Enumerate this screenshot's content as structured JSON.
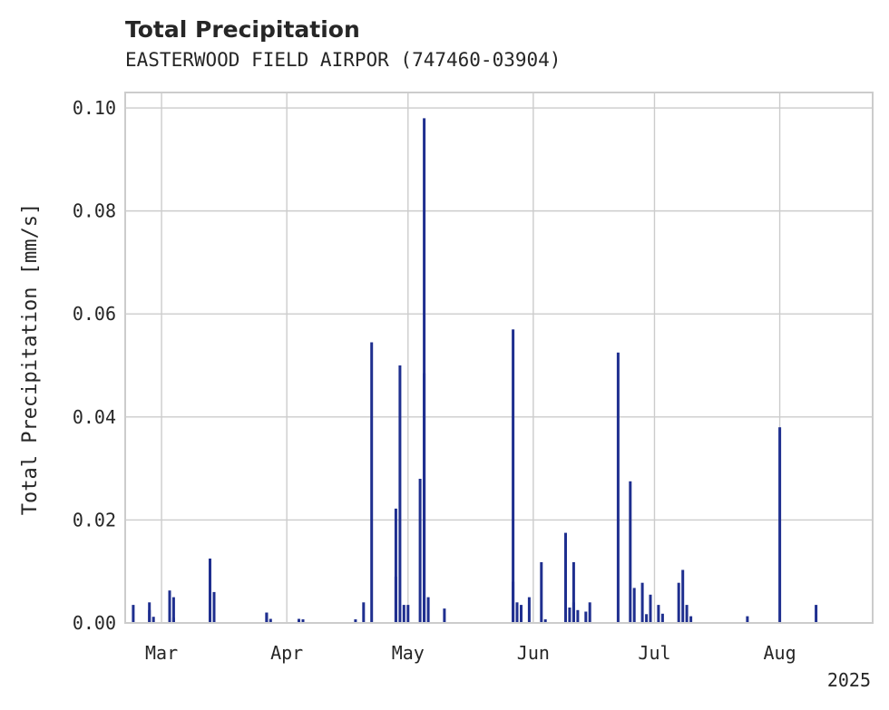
{
  "chart_data": {
    "type": "bar",
    "title": "Total Precipitation",
    "subtitle": "EASTERWOOD FIELD AIRPOR (747460-03904)",
    "ylabel": "Total Precipitation [mm/s]",
    "xlabel": "",
    "xlim": [
      "2025-02-20",
      "2025-08-24"
    ],
    "ylim": [
      0,
      0.103
    ],
    "yticks": [
      0.0,
      0.02,
      0.04,
      0.06,
      0.08,
      0.1
    ],
    "ytick_labels": [
      "0.00",
      "0.02",
      "0.04",
      "0.06",
      "0.08",
      "0.10"
    ],
    "xticks": [
      "2025-03-01",
      "2025-04-01",
      "2025-05-01",
      "2025-06-01",
      "2025-07-01",
      "2025-08-01"
    ],
    "xtick_labels": [
      "Mar",
      "Apr",
      "May",
      "Jun",
      "Jul",
      "Aug"
    ],
    "x_offset_label": "2025",
    "grid": true,
    "legend": false,
    "color": "#1f2f8f",
    "series": [
      {
        "x": [
          "2025-02-22",
          "2025-02-26",
          "2025-02-26",
          "2025-02-27",
          "2025-03-03",
          "2025-03-04",
          "2025-03-04",
          "2025-03-13",
          "2025-03-14",
          "2025-03-14",
          "2025-03-27",
          "2025-03-27",
          "2025-03-28",
          "2025-04-04",
          "2025-04-05",
          "2025-04-18",
          "2025-04-20",
          "2025-04-22",
          "2025-04-28",
          "2025-04-28",
          "2025-04-29",
          "2025-04-30",
          "2025-05-01",
          "2025-05-04",
          "2025-05-05",
          "2025-05-05",
          "2025-05-06",
          "2025-05-10",
          "2025-05-27",
          "2025-05-27",
          "2025-05-28",
          "2025-05-29",
          "2025-05-31",
          "2025-06-03",
          "2025-06-04",
          "2025-06-09",
          "2025-06-10",
          "2025-06-11",
          "2025-06-11",
          "2025-06-12",
          "2025-06-14",
          "2025-06-15",
          "2025-06-22",
          "2025-06-25",
          "2025-06-26",
          "2025-06-28",
          "2025-06-29",
          "2025-06-30",
          "2025-07-02",
          "2025-07-03",
          "2025-07-07",
          "2025-07-08",
          "2025-07-09",
          "2025-07-10",
          "2025-07-24",
          "2025-08-01",
          "2025-08-10"
        ],
        "values": [
          0.0035,
          0.004,
          0.0025,
          0.0012,
          0.0063,
          0.005,
          0.001,
          0.0125,
          0.006,
          0.001,
          0.002,
          0.002,
          0.0008,
          0.0008,
          0.0007,
          0.0007,
          0.004,
          0.0545,
          0.0222,
          0.009,
          0.05,
          0.0035,
          0.0035,
          0.028,
          0.0485,
          0.098,
          0.005,
          0.0028,
          0.057,
          0.008,
          0.004,
          0.0035,
          0.005,
          0.0118,
          0.0007,
          0.0175,
          0.003,
          0.004,
          0.0118,
          0.0025,
          0.0022,
          0.004,
          0.0525,
          0.0275,
          0.0068,
          0.0078,
          0.0017,
          0.0055,
          0.0035,
          0.0018,
          0.0078,
          0.0103,
          0.0035,
          0.0013,
          0.0013,
          0.038,
          0.0035
        ]
      }
    ]
  }
}
